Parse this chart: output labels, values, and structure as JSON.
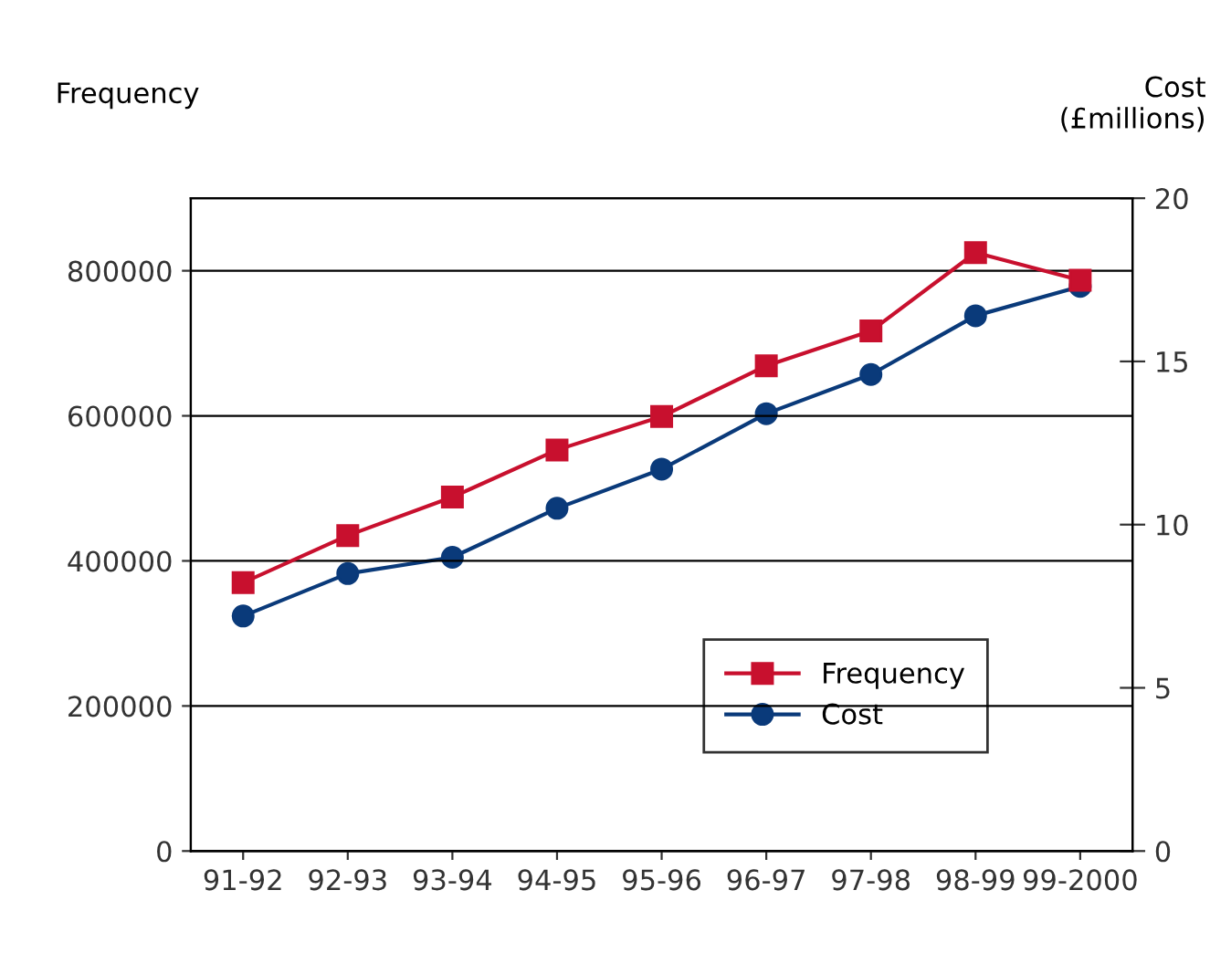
{
  "chart_data": {
    "type": "line",
    "categories": [
      "91-92",
      "92-93",
      "93-94",
      "94-95",
      "95-96",
      "96-97",
      "97-98",
      "98-99",
      "99-2000"
    ],
    "series": [
      {
        "name": "Frequency",
        "color": "#c8102e",
        "marker": "square",
        "values": [
          370000,
          435000,
          488000,
          553000,
          599000,
          669000,
          717000,
          825000,
          787000
        ]
      },
      {
        "name": "Cost",
        "color": "#0a3a7a",
        "marker": "circle",
        "axis": "y2",
        "values": [
          7.2,
          8.5,
          9.0,
          10.5,
          11.7,
          13.4,
          14.6,
          16.4,
          17.3
        ]
      }
    ],
    "ylabel": "Frequency",
    "y2label": "Cost\n(£millions)",
    "ylim": [
      0,
      900000
    ],
    "yticks": [
      0,
      200000,
      400000,
      600000,
      800000
    ],
    "y2lim": [
      0,
      20
    ],
    "y2ticks": [
      0,
      5,
      10,
      15,
      20
    ],
    "grid": "y",
    "legend": "bottom right",
    "line_style": "solid"
  }
}
